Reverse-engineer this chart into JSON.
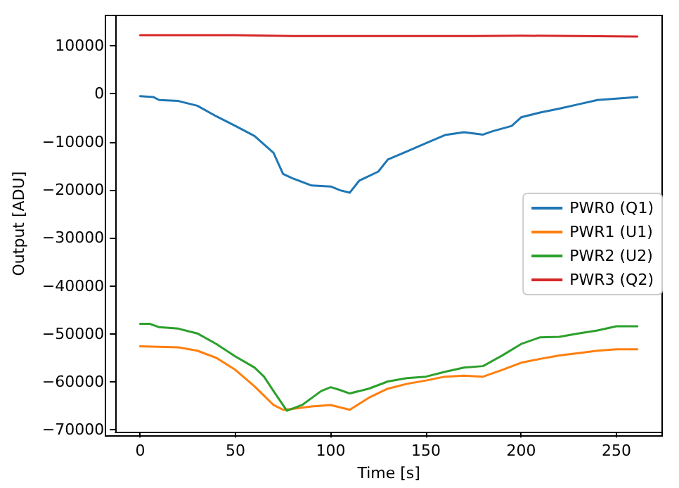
{
  "chart_data": {
    "type": "line",
    "xlabel": "Time [s]",
    "ylabel": "Output [ADU]",
    "xlim": [
      -13,
      274
    ],
    "xticks": [
      0,
      50,
      100,
      150,
      200,
      250
    ],
    "ylim": [
      -70400,
      16300
    ],
    "yticks": [
      -70000,
      -60000,
      -50000,
      -40000,
      -30000,
      -20000,
      -10000,
      0,
      10000
    ],
    "grid": false,
    "legend": "right",
    "marker": "none",
    "line_style": "solid",
    "series": [
      {
        "name": "PWR0 (Q1)",
        "color": "#1f77b4",
        "x": [
          0,
          7,
          10,
          20,
          30,
          40,
          50,
          60,
          70,
          75,
          80,
          90,
          100,
          105,
          110,
          115,
          125,
          130,
          140,
          150,
          160,
          170,
          180,
          185,
          195,
          200,
          210,
          220,
          230,
          240,
          250,
          261
        ],
        "values": [
          -500,
          -700,
          -1300,
          -1500,
          -2500,
          -4700,
          -6700,
          -8800,
          -12300,
          -16700,
          -17600,
          -19100,
          -19300,
          -20100,
          -20600,
          -18100,
          -16200,
          -13700,
          -12000,
          -10300,
          -8600,
          -8000,
          -8500,
          -7800,
          -6700,
          -4900,
          -3900,
          -3100,
          -2200,
          -1300,
          -1000,
          -700
        ]
      },
      {
        "name": "PWR1 (U1)",
        "color": "#ff7f0e",
        "x": [
          0,
          20,
          30,
          40,
          50,
          60,
          70,
          75,
          80,
          90,
          100,
          110,
          120,
          130,
          140,
          150,
          160,
          170,
          180,
          190,
          200,
          210,
          220,
          230,
          240,
          250,
          261
        ],
        "values": [
          -52600,
          -52800,
          -53500,
          -55000,
          -57500,
          -60900,
          -64800,
          -65800,
          -65600,
          -65100,
          -64800,
          -65800,
          -63300,
          -61400,
          -60400,
          -59700,
          -58900,
          -58700,
          -58900,
          -57500,
          -56000,
          -55200,
          -54500,
          -54000,
          -53500,
          -53200,
          -53200
        ]
      },
      {
        "name": "PWR2 (U2)",
        "color": "#2ca02c",
        "x": [
          0,
          5,
          10,
          20,
          30,
          40,
          50,
          60,
          65,
          70,
          77,
          85,
          95,
          100,
          105,
          110,
          120,
          130,
          140,
          150,
          160,
          170,
          180,
          190,
          200,
          210,
          220,
          230,
          240,
          250,
          261
        ],
        "values": [
          -47900,
          -47900,
          -48600,
          -48900,
          -49900,
          -52100,
          -54700,
          -57000,
          -58900,
          -61900,
          -66000,
          -64800,
          -61900,
          -61100,
          -61700,
          -62400,
          -61400,
          -59900,
          -59200,
          -58900,
          -57900,
          -57000,
          -56700,
          -54500,
          -52100,
          -50700,
          -50600,
          -49900,
          -49300,
          -48400,
          -48400
        ]
      },
      {
        "name": "PWR3 (Q2)",
        "color": "#d62728",
        "x": [
          0,
          25,
          50,
          80,
          100,
          125,
          150,
          175,
          200,
          230,
          261
        ],
        "values": [
          12200,
          12200,
          12200,
          12000,
          12000,
          12000,
          12000,
          12000,
          12100,
          12000,
          11900
        ]
      }
    ]
  }
}
